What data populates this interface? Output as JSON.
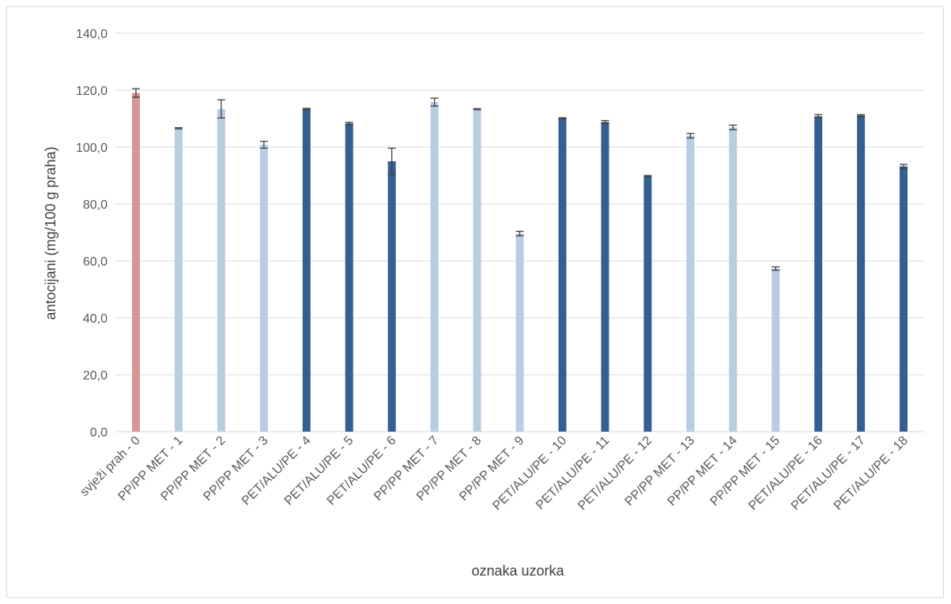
{
  "chart_data": {
    "type": "bar",
    "title": "",
    "xlabel": "oznaka uzorka",
    "ylabel": "antocijani (mg/100 g praha)",
    "ylim": [
      0,
      140
    ],
    "yticks": [
      "0,0",
      "20,0",
      "40,0",
      "60,0",
      "80,0",
      "100,0",
      "120,0",
      "140,0"
    ],
    "ytick_values": [
      0,
      20,
      40,
      60,
      80,
      100,
      120,
      140
    ],
    "grid": true,
    "legend": "none",
    "colors": {
      "fresh": "#d99594",
      "pp_met": "#b8cce4",
      "pet_alu": "#365f91",
      "error_bar": "#404040",
      "grid": "#d9d9d9"
    },
    "categories": [
      "svježi prah - 0",
      "PP/PP MET - 1",
      "PP/PP MET - 2",
      "PP/PP MET - 3",
      "PET/ALU/PE - 4",
      "PET/ALU/PE - 5",
      "PET/ALU/PE - 6",
      "PP/PP MET - 7",
      "PP/PP MET - 8",
      "PP/PP MET - 9",
      "PET/ALU/PE - 10",
      "PET/ALU/PE - 11",
      "PET/ALU/PE - 12",
      "PP/PP MET - 13",
      "PP/PP MET - 14",
      "PP/PP MET - 15",
      "PET/ALU/PE - 16",
      "PET/ALU/PE - 17",
      "PET/ALU/PE - 18"
    ],
    "values": [
      119.0,
      106.6,
      113.4,
      100.8,
      113.4,
      108.3,
      95.0,
      115.8,
      113.3,
      69.6,
      110.1,
      108.8,
      89.8,
      104.0,
      106.9,
      57.3,
      110.8,
      111.1,
      93.2
    ],
    "errors": [
      1.5,
      0.2,
      3.2,
      1.2,
      0.2,
      0.4,
      4.6,
      1.4,
      0.2,
      0.8,
      0.2,
      0.5,
      0.2,
      0.8,
      0.8,
      0.6,
      0.6,
      0.3,
      0.7
    ],
    "groups": [
      "fresh",
      "pp_met",
      "pp_met",
      "pp_met",
      "pet_alu",
      "pet_alu",
      "pet_alu",
      "pp_met",
      "pp_met",
      "pp_met",
      "pet_alu",
      "pet_alu",
      "pet_alu",
      "pp_met",
      "pp_met",
      "pp_met",
      "pet_alu",
      "pet_alu",
      "pet_alu"
    ]
  }
}
